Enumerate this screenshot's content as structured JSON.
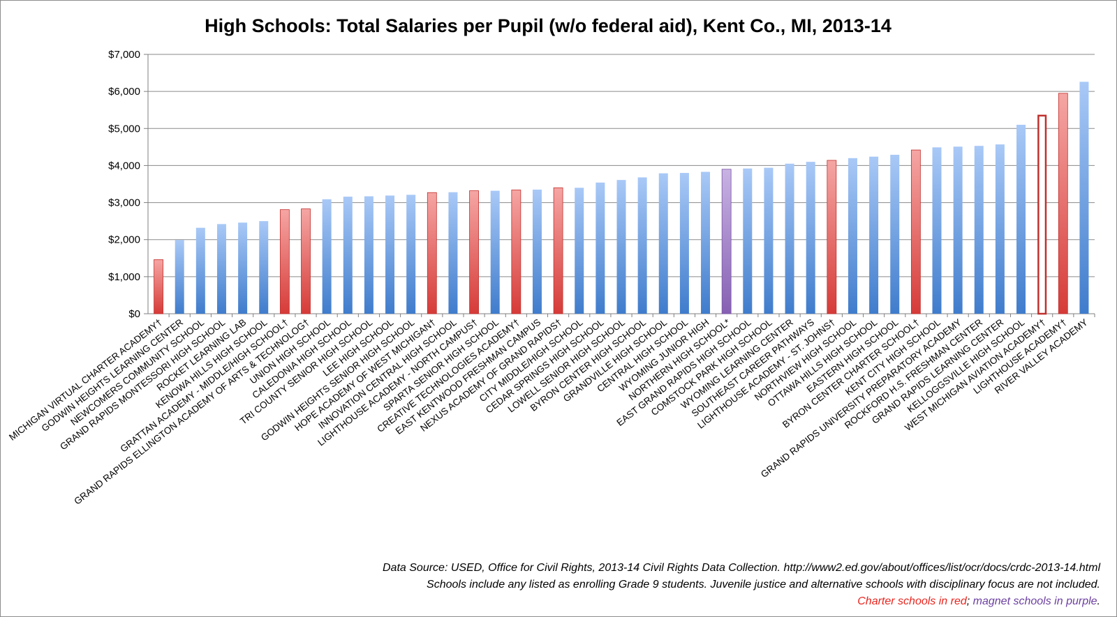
{
  "chart_data": {
    "type": "bar",
    "title": "High Schools: Total Salaries per Pupil (w/o federal aid), Kent Co., MI, 2013-14",
    "xlabel": "",
    "ylabel": "",
    "ylim": [
      0,
      7000
    ],
    "y_ticks": [
      0,
      1000,
      2000,
      3000,
      4000,
      5000,
      6000,
      7000
    ],
    "y_tick_labels": [
      "$0",
      "$1,000",
      "$2,000",
      "$3,000",
      "$4,000",
      "$5,000",
      "$6,000",
      "$7,000"
    ],
    "grid": true,
    "legend": "none",
    "colors": {
      "regular": "#4f86d0",
      "charter": "#d9423f",
      "magnet": "#8e6bb8"
    },
    "bars": [
      {
        "label": "MICHIGAN VIRTUAL CHARTER ACADEMY†",
        "value": 1460,
        "kind": "charter"
      },
      {
        "label": "GODWIN HEIGHTS LEARNING CENTER",
        "value": 1990,
        "kind": "regular"
      },
      {
        "label": "NEWCOMERS COMMUNITY SCHOOL",
        "value": 2320,
        "kind": "regular"
      },
      {
        "label": "GRAND RAPIDS MONTESSORI HIGH SCHOOL",
        "value": 2420,
        "kind": "regular"
      },
      {
        "label": "ROCKET LEARNING LAB",
        "value": 2460,
        "kind": "regular"
      },
      {
        "label": "KENOWA HILLS HIGH SCHOOL",
        "value": 2500,
        "kind": "regular"
      },
      {
        "label": "GRATTAN ACADEMY - MIDDLE/HIGH SCHOOL†",
        "value": 2810,
        "kind": "charter"
      },
      {
        "label": "GRAND RAPIDS ELLINGTON ACADEMY OF ARTS & TECHNOLOG†",
        "value": 2830,
        "kind": "charter"
      },
      {
        "label": "UNION HIGH SCHOOL",
        "value": 3090,
        "kind": "regular"
      },
      {
        "label": "CALEDONIA HIGH SCHOOL",
        "value": 3160,
        "kind": "regular"
      },
      {
        "label": "TRI COUNTY SENIOR HIGH SCHOOL",
        "value": 3170,
        "kind": "regular"
      },
      {
        "label": "LEE HIGH SCHOOL",
        "value": 3190,
        "kind": "regular"
      },
      {
        "label": "GODWIN HEIGHTS SENIOR HIGH SCHOOL",
        "value": 3210,
        "kind": "regular"
      },
      {
        "label": "HOPE ACADEMY OF WEST MICHIGAN†",
        "value": 3270,
        "kind": "charter"
      },
      {
        "label": "INNOVATION CENTRAL HIGH SCHOOL",
        "value": 3280,
        "kind": "regular"
      },
      {
        "label": "LIGHTHOUSE ACADEMY - NORTH CAMPUS†",
        "value": 3320,
        "kind": "charter"
      },
      {
        "label": "SPARTA SENIOR HIGH SCHOOL",
        "value": 3320,
        "kind": "regular"
      },
      {
        "label": "CREATIVE TECHNOLOGIES ACADEMY†",
        "value": 3340,
        "kind": "charter"
      },
      {
        "label": "EAST KENTWOOD FRESHMAN CAMPUS",
        "value": 3350,
        "kind": "regular"
      },
      {
        "label": "NEXUS ACADEMY OF GRAND RAPIDS†",
        "value": 3400,
        "kind": "charter"
      },
      {
        "label": "CITY MIDDLE/HIGH SCHOOL",
        "value": 3400,
        "kind": "regular"
      },
      {
        "label": "CEDAR SPRINGS HIGH SCHOOL",
        "value": 3540,
        "kind": "regular"
      },
      {
        "label": "LOWELL SENIOR HIGH SCHOOL",
        "value": 3610,
        "kind": "regular"
      },
      {
        "label": "BYRON CENTER HIGH SCHOOL",
        "value": 3680,
        "kind": "regular"
      },
      {
        "label": "GRANDVILLE HIGH SCHOOL",
        "value": 3790,
        "kind": "regular"
      },
      {
        "label": "CENTRAL HIGH SCHOOL",
        "value": 3800,
        "kind": "regular"
      },
      {
        "label": "WYOMING JUNIOR HIGH",
        "value": 3830,
        "kind": "regular"
      },
      {
        "label": "NORTHERN HIGH SCHOOL*",
        "value": 3900,
        "kind": "magnet"
      },
      {
        "label": "EAST GRAND RAPIDS HIGH SCHOOL",
        "value": 3920,
        "kind": "regular"
      },
      {
        "label": "COMSTOCK PARK HIGH SCHOOL",
        "value": 3940,
        "kind": "regular"
      },
      {
        "label": "WYOMING LEARNING CENTER",
        "value": 4050,
        "kind": "regular"
      },
      {
        "label": "SOUTHEAST CAREER PATHWAYS",
        "value": 4100,
        "kind": "regular"
      },
      {
        "label": "LIGHTHOUSE ACADEMY - ST. JOHNS†",
        "value": 4140,
        "kind": "charter"
      },
      {
        "label": "NORTHVIEW HIGH SCHOOL",
        "value": 4200,
        "kind": "regular"
      },
      {
        "label": "OTTAWA HILLS HIGH SCHOOL",
        "value": 4240,
        "kind": "regular"
      },
      {
        "label": "EASTERN HIGH SCHOOL",
        "value": 4290,
        "kind": "regular"
      },
      {
        "label": "BYRON CENTER CHARTER SCHOOL†",
        "value": 4420,
        "kind": "charter"
      },
      {
        "label": "KENT CITY HIGH SCHOOL",
        "value": 4490,
        "kind": "regular"
      },
      {
        "label": "GRAND RAPIDS UNIVERSITY PREPARATORY ACADEMY",
        "value": 4510,
        "kind": "regular"
      },
      {
        "label": "ROCKFORD H.S. FRESHMAN CENTER",
        "value": 4530,
        "kind": "regular"
      },
      {
        "label": "GRAND RAPIDS LEARNING CENTER",
        "value": 4570,
        "kind": "regular"
      },
      {
        "label": "KELLOGGSVILLE HIGH SCHOOL",
        "value": 5100,
        "kind": "regular"
      },
      {
        "label": "WEST MICHIGAN AVIATION ACADEMY†",
        "value": 5370,
        "kind": "charter-outline"
      },
      {
        "label": "LIGHTHOUSE ACADEMY†",
        "value": 5950,
        "kind": "charter"
      },
      {
        "label": "RIVER VALLEY ACADEMY",
        "value": 6260,
        "kind": "regular"
      }
    ]
  },
  "notes": {
    "line1": "Data Source: USED, Office for Civil Rights, 2013-14 Civil Rights Data Collection. http://www2.ed.gov/about/offices/list/ocr/docs/crdc-2013-14.html",
    "line2": "Schools include any listed as enrolling Grade 9 students. Juvenile justice and alternative schools with disciplinary focus are not included.",
    "line3_red": "Charter schools in red",
    "line3_sep": "; ",
    "line3_purple": "magnet schools in purple",
    "line3_end": ".",
    "red_color": "#e8251e",
    "purple_color": "#6b3fa0"
  }
}
